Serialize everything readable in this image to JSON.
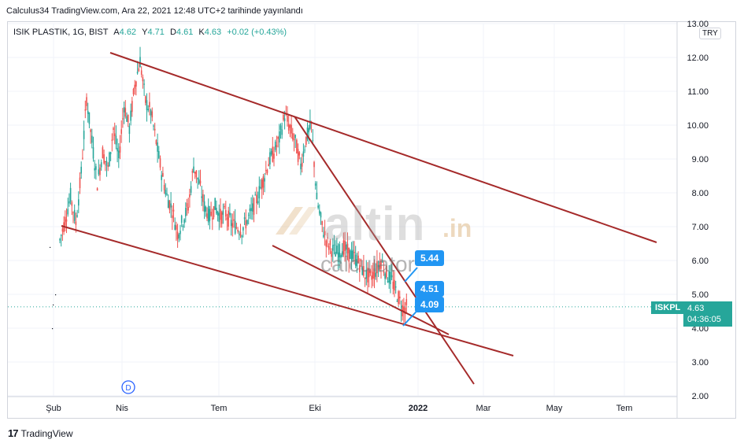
{
  "header": {
    "text": "Calculus34 TradingView.com, Ara 22, 2021 12:48 UTC+2 tarihinde yayınlandı"
  },
  "legend": {
    "symbol": "ISIK PLASTIK, 1G, BIST",
    "open_label": "A",
    "open": "4.62",
    "high_label": "Y",
    "high": "4.71",
    "low_label": "D",
    "low": "4.61",
    "close_label": "K",
    "close": "4.63",
    "change": "+0.02 (+0.43%)"
  },
  "currency": "TRY",
  "price_tag": {
    "symbol": "ISKPL",
    "price": "4.63",
    "countdown": "04:36:05"
  },
  "labels": {
    "a": "5.44",
    "b": "4.51",
    "c": "4.09"
  },
  "watermark": {
    "brand": "altin",
    "tld": ".in",
    "sub": "calculator"
  },
  "event_marker": "D",
  "footer": {
    "logo": "17",
    "brand": "TradingView"
  },
  "colors": {
    "up": "#26a69a",
    "down": "#ef5350",
    "trendline": "#a52a2a",
    "label": "#2196f3"
  },
  "chart_data": {
    "type": "candlestick",
    "title": "ISIK PLASTIK, 1G, BIST",
    "ylim": [
      2.0,
      13.0
    ],
    "y_ticks": [
      "13.00",
      "12.00",
      "11.00",
      "10.00",
      "9.00",
      "8.00",
      "7.00",
      "6.00",
      "5.00",
      "4.00",
      "3.00",
      "2.00"
    ],
    "x_ticks": [
      "Şub",
      "Nis",
      "Tem",
      "Eki",
      "2022",
      "Mar",
      "May",
      "Tem"
    ],
    "last_price": 4.63,
    "price_path": [
      [
        0,
        6.6
      ],
      [
        2,
        7.2
      ],
      [
        4,
        7.9
      ],
      [
        6,
        7.1
      ],
      [
        8,
        8.6
      ],
      [
        10,
        10.8
      ],
      [
        12,
        9.5
      ],
      [
        14,
        8.3
      ],
      [
        16,
        9.2
      ],
      [
        18,
        8.7
      ],
      [
        20,
        9.9
      ],
      [
        22,
        9.0
      ],
      [
        24,
        10.6
      ],
      [
        26,
        9.9
      ],
      [
        28,
        11.2
      ],
      [
        30,
        11.9
      ],
      [
        32,
        10.7
      ],
      [
        34,
        10.4
      ],
      [
        36,
        9.5
      ],
      [
        38,
        8.6
      ],
      [
        40,
        7.9
      ],
      [
        42,
        7.5
      ],
      [
        44,
        6.8
      ],
      [
        46,
        7.2
      ],
      [
        48,
        7.6
      ],
      [
        50,
        8.8
      ],
      [
        52,
        8.3
      ],
      [
        54,
        7.6
      ],
      [
        56,
        7.3
      ],
      [
        58,
        7.6
      ],
      [
        60,
        7.3
      ],
      [
        62,
        7.4
      ],
      [
        64,
        7.1
      ],
      [
        66,
        7.0
      ],
      [
        68,
        6.9
      ],
      [
        70,
        7.2
      ],
      [
        72,
        7.5
      ],
      [
        74,
        7.9
      ],
      [
        76,
        8.4
      ],
      [
        78,
        8.9
      ],
      [
        80,
        9.2
      ],
      [
        82,
        9.6
      ],
      [
        84,
        10.3
      ],
      [
        86,
        9.9
      ],
      [
        88,
        9.5
      ],
      [
        90,
        8.8
      ],
      [
        92,
        9.6
      ],
      [
        94,
        10.0
      ],
      [
        96,
        7.8
      ],
      [
        98,
        7.0
      ],
      [
        100,
        6.5
      ],
      [
        102,
        6.3
      ],
      [
        104,
        6.2
      ],
      [
        106,
        6.4
      ],
      [
        108,
        6.2
      ],
      [
        110,
        6.1
      ],
      [
        112,
        5.9
      ],
      [
        114,
        5.6
      ],
      [
        116,
        5.5
      ],
      [
        118,
        5.7
      ],
      [
        120,
        6.0
      ],
      [
        122,
        5.6
      ],
      [
        124,
        5.4
      ],
      [
        126,
        5.0
      ],
      [
        128,
        4.6
      ],
      [
        130,
        4.63
      ]
    ],
    "trendlines": [
      {
        "name": "channel-top",
        "from": {
          "t": 17,
          "p": 12.1
        },
        "to": {
          "t": 190,
          "p": 6.5
        }
      },
      {
        "name": "channel-bottom",
        "from": {
          "t": 0,
          "p": 7.0
        },
        "to": {
          "t": 150,
          "p": 3.2
        }
      },
      {
        "name": "wedge-top",
        "from": {
          "t": 77,
          "p": 10.3
        },
        "to": {
          "t": 141,
          "p": 2.4
        }
      },
      {
        "name": "wedge-bottom",
        "from": {
          "t": 70,
          "p": 6.4
        },
        "to": {
          "t": 138,
          "p": 3.9
        }
      }
    ],
    "annotations": [
      {
        "text": "5.44",
        "value": 5.44
      },
      {
        "text": "4.51",
        "value": 4.51
      },
      {
        "text": "4.09",
        "value": 4.09
      }
    ]
  }
}
